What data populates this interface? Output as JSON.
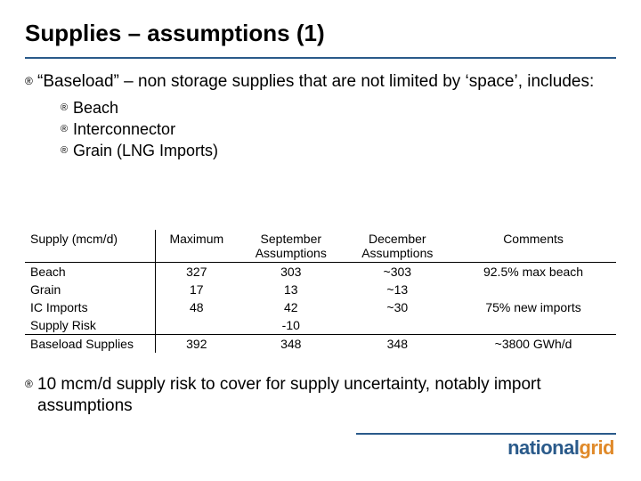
{
  "title": "Supplies – assumptions (1)",
  "bullet1": "“Baseload” – non storage supplies that are not limited by ‘space’, includes:",
  "sub_bullets": [
    "Beach",
    "Interconnector",
    "Grain (LNG Imports)"
  ],
  "bullet2": "10 mcm/d supply risk to cover for supply uncertainty, notably import assumptions",
  "table": {
    "columns": [
      "Supply (mcm/d)",
      "Maximum",
      "September Assumptions",
      "December Assumptions",
      "Comments"
    ],
    "rows": [
      {
        "label": "Beach",
        "max": "327",
        "sep": "303",
        "dec": "~303",
        "comment": "92.5% max beach"
      },
      {
        "label": "Grain",
        "max": "17",
        "sep": "13",
        "dec": "~13",
        "comment": ""
      },
      {
        "label": "IC Imports",
        "max": "48",
        "sep": "42",
        "dec": "~30",
        "comment": "75% new imports"
      },
      {
        "label": "Supply Risk",
        "max": "",
        "sep": "-10",
        "dec": "",
        "comment": ""
      }
    ],
    "total_row": {
      "label": "Baseload Supplies",
      "max": "392",
      "sep": "348",
      "dec": "348",
      "comment": "~3800 GWh/d"
    }
  },
  "logo": {
    "part1": "national",
    "part2": "grid"
  },
  "style": {
    "title_fontsize": 26,
    "body_fontsize": 19,
    "sub_fontsize": 18,
    "table_fontsize": 14,
    "rule_color": "#2a5a8a",
    "logo_color1": "#2a5a8a",
    "logo_color2": "#e08a2a",
    "text_color": "#000000",
    "background": "#ffffff"
  }
}
